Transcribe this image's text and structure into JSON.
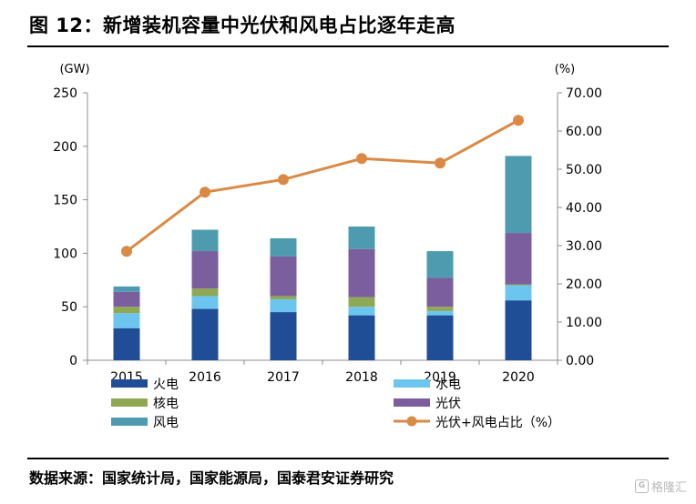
{
  "title": "图 12：新增装机容量中光伏和风电占比逐年走高",
  "source": "数据来源：国家统计局，国家能源局，国泰君安证券研究",
  "watermark": "格隆汇",
  "colors": {
    "thermal": "#1F4E96",
    "hydro": "#6CC5EE",
    "nuclear": "#8FA854",
    "solar": "#7B5E9E",
    "wind": "#4E9BB0",
    "share": "#DB8A45"
  },
  "chart_data": {
    "type": "bar",
    "stacked": true,
    "categories": [
      "2015",
      "2016",
      "2017",
      "2018",
      "2019",
      "2020"
    ],
    "y_unit_label": "(GW)",
    "y2_unit_label": "(%)",
    "ylim": [
      0,
      250
    ],
    "y_ticks": [
      "0",
      "50",
      "100",
      "150",
      "200",
      "250"
    ],
    "y2lim": [
      0,
      70
    ],
    "y2_ticks": [
      "0.00",
      "10.00",
      "20.00",
      "30.00",
      "40.00",
      "50.00",
      "60.00",
      "70.00"
    ],
    "grid": false,
    "legend_position": "bottom",
    "series": [
      {
        "name": "火电",
        "key": "thermal",
        "values": [
          30,
          48,
          45,
          42,
          42,
          56
        ]
      },
      {
        "name": "水电",
        "key": "hydro",
        "values": [
          14,
          12,
          12,
          8,
          4,
          14
        ]
      },
      {
        "name": "核电",
        "key": "nuclear",
        "values": [
          6,
          7,
          3,
          9,
          4,
          1
        ]
      },
      {
        "name": "光伏",
        "key": "solar",
        "values": [
          14,
          35,
          37,
          45,
          27,
          48
        ]
      },
      {
        "name": "风电",
        "key": "wind",
        "values": [
          5,
          20,
          17,
          21,
          25,
          72
        ]
      }
    ],
    "line_series": {
      "name": "光伏+风电占比（%）",
      "key": "share",
      "axis": "right",
      "values": [
        28.5,
        44.0,
        47.3,
        52.8,
        51.6,
        62.8
      ]
    }
  }
}
